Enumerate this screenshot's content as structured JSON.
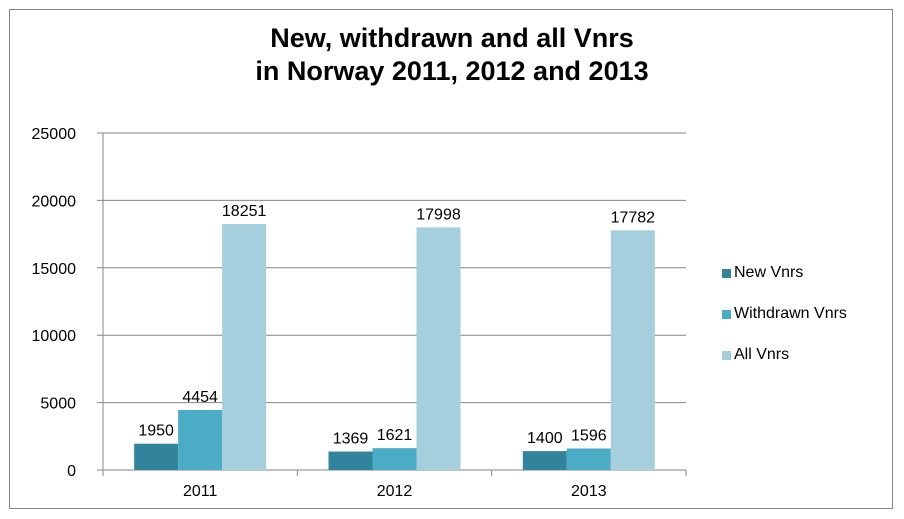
{
  "chart_data": {
    "type": "bar",
    "title": [
      "New, withdrawn and all Vnrs",
      "in Norway 2011, 2012 and 2013"
    ],
    "categories": [
      "2011",
      "2012",
      "2013"
    ],
    "series": [
      {
        "name": "New Vnrs",
        "color": "#31849B",
        "values": [
          1950,
          1369,
          1400
        ]
      },
      {
        "name": "Withdrawn Vnrs",
        "color": "#4BACC6",
        "values": [
          4454,
          1621,
          1596
        ]
      },
      {
        "name": "All Vnrs",
        "color": "#A5CFDC",
        "values": [
          18251,
          17998,
          17782
        ]
      }
    ],
    "ylim": [
      0,
      25000
    ],
    "yticks": [
      "0",
      "5000",
      "10000",
      "15000",
      "20000",
      "25000"
    ],
    "grid": true,
    "legend_position": "right",
    "data_labels": true
  }
}
